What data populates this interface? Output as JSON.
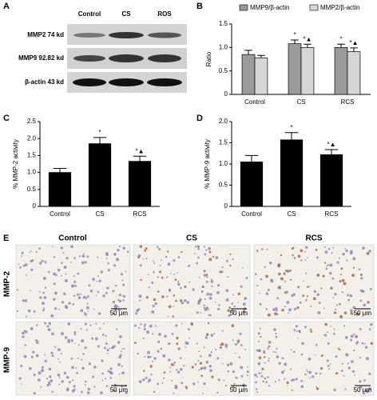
{
  "panel_labels": [
    "A",
    "B",
    "C",
    "D",
    "E"
  ],
  "blot": {
    "columns": [
      "Control",
      "CS",
      "ROS"
    ],
    "rows": [
      "MMP2 74 kd",
      "MMP9 92.82 kd",
      "β-actin 43 kd"
    ]
  },
  "histology": {
    "columns": [
      "Control",
      "CS",
      "RCS"
    ],
    "rows": [
      "MMP-2",
      "MMP-9"
    ],
    "scale_bar": "50 μm"
  },
  "chart_data": [
    {
      "type": "bar",
      "y_label": "Ratio",
      "categories": [
        "Control",
        "CS",
        "RCS"
      ],
      "ylim": [
        0,
        1.5
      ],
      "yticks": [
        0,
        0.5,
        {
          "value": 1,
          "label": "1.0"
        },
        1.5
      ],
      "series": [
        {
          "name": "MMP9/β-actin",
          "color": "#9a9a9a",
          "values": [
            0.85,
            1.08,
            1.0
          ],
          "errors": [
            0.09,
            0.08,
            0.07
          ],
          "marks": [
            null,
            "*",
            "*"
          ]
        },
        {
          "name": "MMP2/β-actin",
          "color": "#d6d6d6",
          "values": [
            0.78,
            1.0,
            0.91
          ],
          "errors": [
            0.05,
            0.07,
            0.08
          ],
          "marks": [
            null,
            "*▲",
            "*▲"
          ]
        }
      ]
    },
    {
      "type": "bar",
      "y_label": "% MMP-2 activity",
      "categories": [
        "Control",
        "CS",
        "RCS"
      ],
      "color": "#000000",
      "ylim": [
        0,
        2.5
      ],
      "yticks": [
        0,
        0.5,
        {
          "value": 1,
          "label": "1.0"
        },
        1.5,
        {
          "value": 2,
          "label": "2.0"
        },
        2.5
      ],
      "values": [
        1.0,
        1.85,
        1.33
      ],
      "errors": [
        0.12,
        0.18,
        0.15
      ],
      "marks": [
        null,
        "*",
        "*▲"
      ]
    },
    {
      "type": "bar",
      "y_label": "% MMP-9 activity",
      "categories": [
        "Control",
        "CS",
        "RCS"
      ],
      "color": "#000000",
      "ylim": [
        0,
        2.0
      ],
      "yticks": [
        0,
        0.5,
        {
          "value": 1,
          "label": "1.0"
        },
        1.5,
        {
          "value": 2,
          "label": "2.0"
        }
      ],
      "values": [
        1.05,
        1.57,
        1.22
      ],
      "errors": [
        0.15,
        0.17,
        0.12
      ],
      "marks": [
        null,
        "*",
        "*▲"
      ]
    }
  ]
}
